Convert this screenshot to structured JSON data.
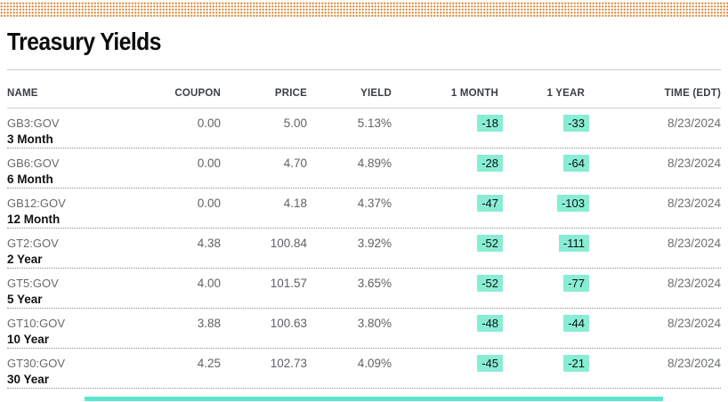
{
  "page": {
    "title": "Treasury Yields"
  },
  "table": {
    "columns": [
      "NAME",
      "COUPON",
      "PRICE",
      "YIELD",
      "1 MONTH",
      "1 YEAR",
      "TIME (EDT)"
    ],
    "rows": [
      {
        "ticker": "GB3:GOV",
        "name": "3 Month",
        "coupon": "0.00",
        "price": "5.00",
        "yield": "5.13%",
        "month1": "-18",
        "year1": "-33",
        "time": "8/23/2024"
      },
      {
        "ticker": "GB6:GOV",
        "name": "6 Month",
        "coupon": "0.00",
        "price": "4.70",
        "yield": "4.89%",
        "month1": "-28",
        "year1": "-64",
        "time": "8/23/2024"
      },
      {
        "ticker": "GB12:GOV",
        "name": "12 Month",
        "coupon": "0.00",
        "price": "4.18",
        "yield": "4.37%",
        "month1": "-47",
        "year1": "-103",
        "time": "8/23/2024"
      },
      {
        "ticker": "GT2:GOV",
        "name": "2 Year",
        "coupon": "4.38",
        "price": "100.84",
        "yield": "3.92%",
        "month1": "-52",
        "year1": "-111",
        "time": "8/23/2024"
      },
      {
        "ticker": "GT5:GOV",
        "name": "5 Year",
        "coupon": "4.00",
        "price": "101.57",
        "yield": "3.65%",
        "month1": "-52",
        "year1": "-77",
        "time": "8/23/2024"
      },
      {
        "ticker": "GT10:GOV",
        "name": "10 Year",
        "coupon": "3.88",
        "price": "100.63",
        "yield": "3.80%",
        "month1": "-48",
        "year1": "-44",
        "time": "8/23/2024"
      },
      {
        "ticker": "GT30:GOV",
        "name": "30 Year",
        "coupon": "4.25",
        "price": "102.73",
        "yield": "4.09%",
        "month1": "-45",
        "year1": "-21",
        "time": "8/23/2024"
      }
    ]
  },
  "colors": {
    "top_bar_dots": "#DB8C3E",
    "change_highlight": "#88EDD4",
    "bottom_bar": "#5BE6CE"
  }
}
